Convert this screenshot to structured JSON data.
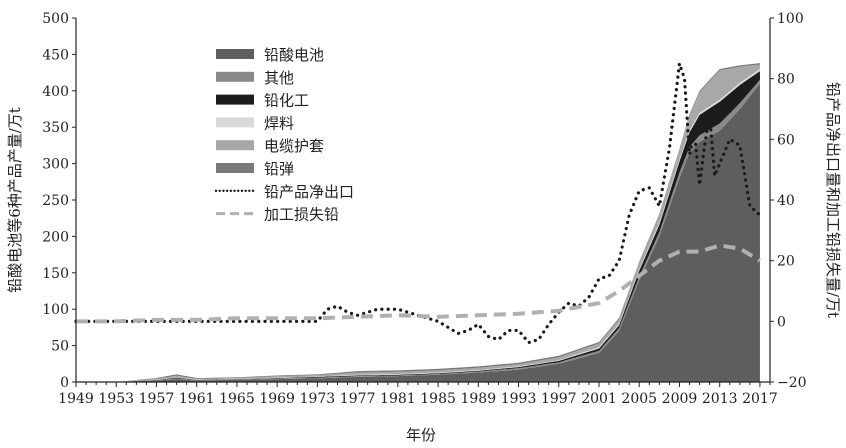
{
  "chart_data": {
    "type": "area",
    "xlabel": "年份",
    "ylabel_left": "铅酸电池等6种产品产量/万t",
    "ylabel_right": "铅产品净出口量和加工铅损失量/万t",
    "ylim_left": [
      0,
      500
    ],
    "ylim_right": [
      -20,
      100
    ],
    "yticks_left": [
      "0",
      "50",
      "100",
      "150",
      "200",
      "250",
      "300",
      "350",
      "400",
      "450",
      "500"
    ],
    "yticks_right": [
      "−20",
      "0",
      "20",
      "40",
      "60",
      "80",
      "100"
    ],
    "xticks": [
      "1949",
      "1953",
      "1957",
      "1961",
      "1965",
      "1969",
      "1973",
      "1977",
      "1981",
      "1985",
      "1989",
      "1993",
      "1997",
      "2001",
      "2005",
      "2009",
      "2013",
      "2017"
    ],
    "legend_position": "top-left",
    "colors": {
      "铅酸电池": "#5e5e5e",
      "其他": "#8a8a8a",
      "铅化工": "#1c1c1c",
      "焊料": "#d9d9d9",
      "电缆护套": "#a8a8a8",
      "铅弹": "#7a7a7a",
      "铅产品净出口": "#1a1a1a",
      "加工损失铅": "#b0b0b0"
    },
    "stacked_series": [
      {
        "name": "铅酸电池",
        "values": {
          "1949": 0,
          "1953": 0,
          "1957": 2,
          "1959": 4,
          "1961": 2,
          "1965": 3,
          "1969": 4,
          "1973": 5,
          "1977": 7,
          "1981": 8,
          "1985": 10,
          "1989": 13,
          "1993": 17,
          "1997": 25,
          "2001": 40,
          "2003": 70,
          "2005": 140,
          "2007": 200,
          "2009": 280,
          "2010": 315,
          "2011": 330,
          "2013": 345,
          "2015": 375,
          "2017": 410
        }
      },
      {
        "name": "其他",
        "values": {
          "1949": 0,
          "1953": 0,
          "1957": 0.5,
          "1959": 1,
          "1961": 0.5,
          "1965": 0.5,
          "1969": 1,
          "1973": 1,
          "1977": 1,
          "1981": 1,
          "1985": 1,
          "1989": 1.5,
          "1993": 2,
          "1997": 2,
          "2001": 3,
          "2003": 4,
          "2005": 5,
          "2007": 6,
          "2009": 8,
          "2010": 8,
          "2011": 9,
          "2013": 10,
          "2015": 8,
          "2017": 5
        }
      },
      {
        "name": "铅化工",
        "values": {
          "1949": 0,
          "1953": 0,
          "1957": 0.5,
          "1959": 1,
          "1961": 0.5,
          "1965": 0.5,
          "1969": 0.5,
          "1973": 1,
          "1977": 1,
          "1981": 1,
          "1985": 1,
          "1989": 1,
          "1993": 1.5,
          "1997": 2,
          "2001": 3,
          "2003": 4,
          "2005": 8,
          "2007": 10,
          "2009": 15,
          "2010": 20,
          "2011": 28,
          "2013": 30,
          "2015": 25,
          "2017": 12
        }
      },
      {
        "name": "焊料",
        "values": {
          "1949": 0,
          "1953": 0,
          "1957": 0.5,
          "1959": 0.5,
          "1961": 0.5,
          "1965": 0.5,
          "1969": 0.5,
          "1973": 0.5,
          "1977": 1,
          "1981": 1,
          "1985": 1,
          "1989": 1,
          "1993": 1,
          "1997": 1,
          "2001": 2,
          "2003": 2,
          "2005": 2,
          "2007": 3,
          "2009": 3,
          "2010": 3,
          "2011": 3,
          "2013": 3,
          "2015": 3,
          "2017": 3
        }
      },
      {
        "name": "电缆护套",
        "values": {
          "1949": 0,
          "1953": 0,
          "1957": 1,
          "1959": 2,
          "1961": 1,
          "1965": 1,
          "1969": 2,
          "1973": 2,
          "1977": 3,
          "1981": 3,
          "1985": 3,
          "1989": 3,
          "1993": 3,
          "1997": 4,
          "2001": 5,
          "2003": 6,
          "2005": 8,
          "2007": 10,
          "2009": 12,
          "2010": 20,
          "2011": 28,
          "2013": 40,
          "2015": 22,
          "2017": 6
        }
      },
      {
        "name": "铅弹",
        "values": {
          "1949": 0,
          "1953": 0,
          "1957": 1,
          "1959": 2,
          "1961": 1,
          "1965": 1,
          "1969": 1,
          "1973": 1,
          "1977": 2,
          "1981": 2,
          "1985": 2,
          "1989": 2,
          "1993": 2,
          "1997": 2,
          "2001": 2,
          "2003": 2,
          "2005": 2,
          "2007": 2,
          "2009": 2,
          "2010": 2,
          "2011": 2,
          "2013": 2,
          "2015": 2,
          "2017": 2
        }
      }
    ],
    "line_series": [
      {
        "name": "铅产品净出口",
        "style": "dotted",
        "axis": "right",
        "x": [
          1949,
          1955,
          1960,
          1965,
          1970,
          1973,
          1974,
          1975,
          1976,
          1977,
          1978,
          1979,
          1980,
          1981,
          1982,
          1983,
          1984,
          1985,
          1986,
          1987,
          1988,
          1989,
          1990,
          1991,
          1992,
          1993,
          1994,
          1995,
          1996,
          1997,
          1998,
          1999,
          2000,
          2001,
          2002,
          2003,
          2004,
          2005,
          2006,
          2007,
          2008,
          2009,
          2009.5,
          2010,
          2010.5,
          2011,
          2011.5,
          2012,
          2012.5,
          2013,
          2014,
          2015,
          2016,
          2017
        ],
        "y": [
          0,
          0,
          0,
          0,
          0,
          0,
          4,
          5,
          3,
          2,
          3,
          4,
          4,
          4,
          3,
          2,
          1,
          0,
          -2,
          -4,
          -3,
          -1,
          -5,
          -6,
          -3,
          -3,
          -7,
          -6,
          -1,
          3,
          6,
          5,
          8,
          14,
          15,
          20,
          35,
          43,
          44,
          38,
          57,
          85,
          80,
          55,
          62,
          45,
          58,
          68,
          48,
          52,
          60,
          58,
          38,
          35
        ]
      },
      {
        "name": "加工损失铅",
        "style": "dashed",
        "axis": "right",
        "x": [
          1949,
          1953,
          1957,
          1961,
          1965,
          1969,
          1973,
          1977,
          1981,
          1985,
          1989,
          1993,
          1997,
          2001,
          2003,
          2005,
          2007,
          2009,
          2011,
          2013,
          2015,
          2017
        ],
        "y": [
          0,
          0,
          0.5,
          0.5,
          1,
          1,
          1,
          1.5,
          2,
          1.5,
          2,
          2.5,
          3.5,
          6,
          10,
          15,
          20,
          23,
          23,
          25,
          24,
          20
        ]
      }
    ]
  }
}
